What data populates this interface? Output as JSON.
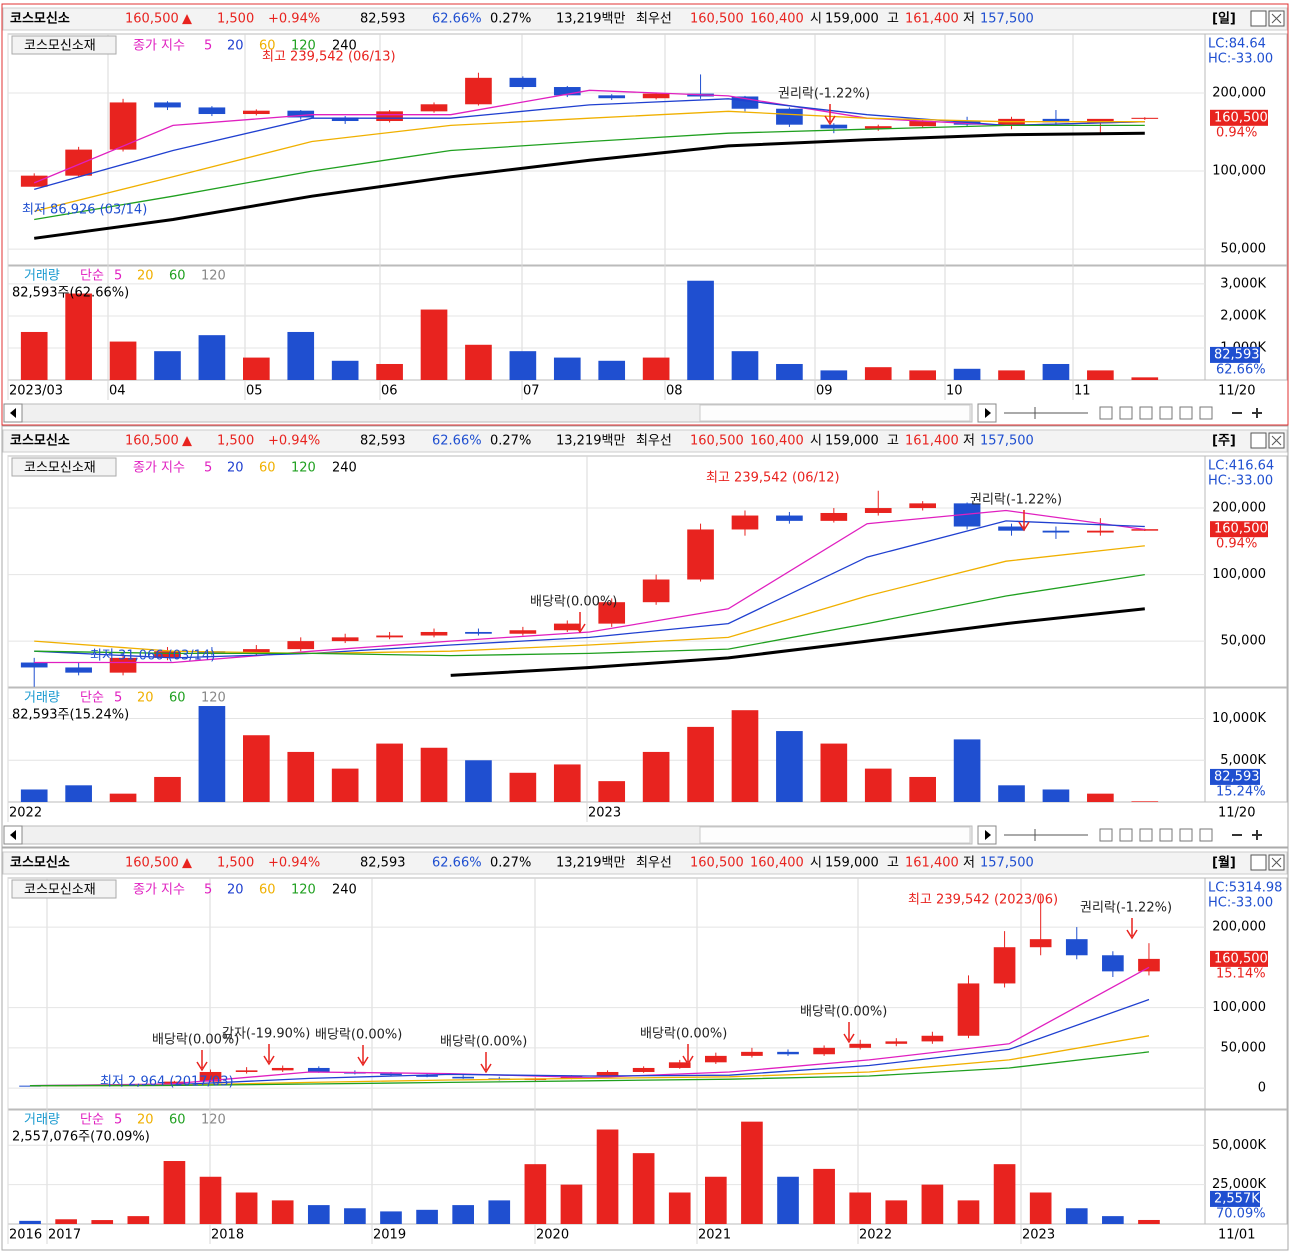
{
  "quote": {
    "name": "코스모신소",
    "price": "160,500",
    "arrow": "▲",
    "change": "1,500",
    "change_pct": "+0.94%",
    "volume": "82,593",
    "volume_ratio": "62.66%",
    "turnover": "0.27%",
    "amount": "13,219백만",
    "best_label": "최우선",
    "best_ask": "160,500",
    "best_bid": "160,400",
    "open_label": "시",
    "open": "159,000",
    "high_label": "고",
    "high": "161,400",
    "low_label": "저",
    "low": "157,500"
  },
  "panels": [
    {
      "period": "[일]",
      "price_chart": {
        "type": "candlestick",
        "legend_name": "코스모신소재",
        "legend_label": "종가 지수",
        "log_scale": true,
        "ylim": [
          43400,
          338000
        ],
        "yticks": [
          {
            "value": 200000,
            "label": "200,000"
          },
          {
            "value": 100000,
            "label": "100,000"
          },
          {
            "value": 50000,
            "label": "50,000"
          }
        ],
        "lc": "LC:84.64",
        "hc": "HC:-33.00",
        "last_price": "160,500",
        "last_change": "0.94%",
        "up_color": "#e8231f",
        "down_color": "#1f4fd0",
        "open": [
          87000,
          96000,
          121000,
          184000,
          176000,
          166000,
          171000,
          161000,
          156000,
          170000,
          181000,
          229000,
          211000,
          196000,
          191000,
          199000,
          194000,
          174000,
          151000,
          146000,
          149000,
          156000,
          151000,
          159000,
          154000,
          159000
        ],
        "close": [
          96000,
          121000,
          184000,
          176000,
          166000,
          171000,
          161000,
          156000,
          170000,
          181000,
          229000,
          211000,
          196000,
          191000,
          199000,
          194000,
          174000,
          151000,
          146000,
          149000,
          156000,
          151000,
          159000,
          154000,
          159000,
          160500
        ],
        "high": [
          98000,
          124000,
          190000,
          186000,
          178000,
          173000,
          172000,
          163000,
          172000,
          184000,
          239542,
          232000,
          213000,
          198000,
          201000,
          236000,
          195000,
          176000,
          153000,
          151000,
          158000,
          162000,
          162000,
          172000,
          158000,
          161400
        ],
        "low": [
          86926,
          95000,
          119000,
          172000,
          163000,
          164000,
          158000,
          152000,
          154000,
          168000,
          179000,
          207000,
          193000,
          188000,
          189000,
          190000,
          170000,
          148000,
          140000,
          143000,
          147000,
          148000,
          145000,
          150000,
          140000,
          157500
        ],
        "moving_averages": [
          {
            "name": "5",
            "color": "#e020c0",
            "values": [
              90000,
              150000,
              165000,
              165000,
              205000,
              195000,
              160000,
              150000,
              155000
            ]
          },
          {
            "name": "20",
            "color": "#2040d0",
            "values": [
              85000,
              120000,
              160000,
              160000,
              180000,
              190000,
              165000,
              150000,
              155000
            ]
          },
          {
            "name": "60",
            "color": "#f0b000",
            "values": [
              70000,
              95000,
              130000,
              150000,
              160000,
              170000,
              160000,
              155000,
              155000
            ]
          },
          {
            "name": "120",
            "color": "#20a020",
            "values": [
              65000,
              80000,
              100000,
              120000,
              130000,
              140000,
              145000,
              150000,
              150000
            ]
          },
          {
            "name": "240",
            "color": "#000000",
            "values": [
              55000,
              65000,
              80000,
              95000,
              110000,
              125000,
              132000,
              138000,
              140000
            ]
          }
        ],
        "annotations": [
          "최고 239,542 (06/13)",
          "최저 86,926 (03/14)",
          "권리락(-1.22%)"
        ]
      },
      "volume_chart": {
        "type": "bar",
        "title": "거래량",
        "method": "단순",
        "legend": [
          {
            "name": "5",
            "color": "#e020c0"
          },
          {
            "name": "20",
            "color": "#f0b000"
          },
          {
            "name": "60",
            "color": "#20a020"
          },
          {
            "name": "120",
            "color": "#888888"
          }
        ],
        "summary": "82,593주(62.66%)",
        "last_value": "82,593",
        "last_ratio": "62.66%",
        "ylim": [
          0,
          3560000
        ],
        "yticks": [
          {
            "value": 3000000,
            "label": "3,000K"
          },
          {
            "value": 2000000,
            "label": "2,000K"
          },
          {
            "value": 1000000,
            "label": "1,000K"
          }
        ],
        "values": [
          1500000,
          2700000,
          1200000,
          900000,
          1400000,
          700000,
          1500000,
          600000,
          500000,
          2200000,
          1100000,
          900000,
          700000,
          600000,
          700000,
          3100000,
          900000,
          500000,
          300000,
          400000,
          300000,
          350000,
          300000,
          500000,
          300000,
          82593
        ]
      },
      "x_axis": {
        "labels": [
          "2023/03",
          "04",
          "05",
          "06",
          "07",
          "08",
          "09",
          "10",
          "11"
        ],
        "end_label": "11/20"
      }
    },
    {
      "period": "[주]",
      "price_chart": {
        "type": "candlestick",
        "legend_name": "코스모신소재",
        "legend_label": "종가 지수",
        "log_scale": true,
        "ylim": [
          31000,
          344000
        ],
        "yticks": [
          {
            "value": 200000,
            "label": "200,000"
          },
          {
            "value": 100000,
            "label": "100,000"
          },
          {
            "value": 50000,
            "label": "50,000"
          }
        ],
        "lc": "LC:416.64",
        "hc": "HC:-33.00",
        "last_price": "160,500",
        "last_change": "0.94%",
        "up_color": "#e8231f",
        "down_color": "#1f4fd0",
        "open": [
          40000,
          38000,
          36000,
          42000,
          45000,
          44000,
          46000,
          50000,
          52000,
          53000,
          55000,
          54000,
          56000,
          60000,
          75000,
          95000,
          160000,
          185000,
          175000,
          190000,
          200000,
          210000,
          165000,
          158000,
          155000,
          158000
        ],
        "close": [
          38000,
          36000,
          42000,
          45000,
          44000,
          46000,
          50000,
          52000,
          53000,
          55000,
          54000,
          56000,
          60000,
          75000,
          95000,
          160000,
          185000,
          175000,
          190000,
          200000,
          210000,
          165000,
          158000,
          155000,
          158000,
          160500
        ],
        "high": [
          42000,
          40000,
          43000,
          47000,
          47000,
          48000,
          52000,
          54000,
          55000,
          57000,
          57000,
          58000,
          62000,
          78000,
          100000,
          170000,
          195000,
          192000,
          200000,
          239542,
          215000,
          212000,
          170000,
          165000,
          180000,
          161400
        ],
        "low": [
          31066,
          35000,
          35000,
          41000,
          43000,
          43000,
          45000,
          49000,
          51000,
          52000,
          53000,
          53000,
          55000,
          58000,
          73000,
          93000,
          150000,
          170000,
          172000,
          185000,
          195000,
          160000,
          150000,
          145000,
          150000,
          157500
        ],
        "moving_averages": [
          {
            "name": "5",
            "color": "#e020c0",
            "values": [
              40000,
              40000,
              45000,
              50000,
              55000,
              70000,
              170000,
              195000,
              160000
            ]
          },
          {
            "name": "20",
            "color": "#2040d0",
            "values": [
              45000,
              42000,
              44000,
              48000,
              52000,
              60000,
              120000,
              175000,
              165000
            ]
          },
          {
            "name": "60",
            "color": "#f0b000",
            "values": [
              50000,
              45000,
              44000,
              45000,
              48000,
              52000,
              80000,
              115000,
              135000
            ]
          },
          {
            "name": "120",
            "color": "#20a020",
            "values": [
              45000,
              44000,
              44000,
              43000,
              44000,
              46000,
              60000,
              80000,
              100000
            ]
          },
          {
            "name": "240",
            "color": "#000000",
            "values": [
              null,
              null,
              null,
              35000,
              38000,
              42000,
              50000,
              60000,
              70000
            ]
          }
        ],
        "annotations": [
          "최고 239,542 (06/12)",
          "최저 31,066 (03/14)",
          "권리락(-1.22%)",
          "배당락(0.00%)"
        ]
      },
      "volume_chart": {
        "type": "bar",
        "title": "거래량",
        "method": "단순",
        "legend": [
          {
            "name": "5",
            "color": "#e020c0"
          },
          {
            "name": "20",
            "color": "#f0b000"
          },
          {
            "name": "60",
            "color": "#20a020"
          },
          {
            "name": "120",
            "color": "#888888"
          }
        ],
        "summary": "82,593주(15.24%)",
        "last_value": "82,593",
        "last_ratio": "15.24%",
        "ylim": [
          0,
          13660000
        ],
        "yticks": [
          {
            "value": 10000000,
            "label": "10,000K"
          },
          {
            "value": 5000000,
            "label": "5,000K"
          }
        ],
        "values": [
          1500000,
          2000000,
          1000000,
          3000000,
          11500000,
          8000000,
          6000000,
          4000000,
          7000000,
          6500000,
          5000000,
          3500000,
          4500000,
          2500000,
          6000000,
          9000000,
          11000000,
          8500000,
          7000000,
          4000000,
          3000000,
          7500000,
          2000000,
          1500000,
          1000000,
          82593
        ]
      },
      "x_axis": {
        "labels": [
          "2022",
          "2023"
        ],
        "end_label": "11/20"
      }
    },
    {
      "period": "[월]",
      "price_chart": {
        "type": "candlestick",
        "legend_name": "코스모신소재",
        "legend_label": "종가 지수",
        "log_scale": false,
        "ylim": [
          -26000,
          261000
        ],
        "yticks": [
          {
            "value": 200000,
            "label": "200,000"
          },
          {
            "value": 100000,
            "label": "100,000"
          },
          {
            "value": 50000,
            "label": "50,000"
          },
          0
        ],
        "lc": "LC:5314.98",
        "hc": "HC:-33.00",
        "last_price": "160,500",
        "last_change": "15.14%",
        "up_color": "#e8231f",
        "down_color": "#1f4fd0",
        "open": [
          3000,
          2964,
          3500,
          4000,
          5000,
          8000,
          20000,
          22000,
          25000,
          20000,
          18000,
          16000,
          14000,
          12000,
          10000,
          12000,
          15000,
          20000,
          25000,
          32000,
          40000,
          45000,
          42000,
          50000,
          55000,
          58000,
          65000,
          130000,
          175000,
          185000,
          165000,
          145000
        ],
        "close": [
          2964,
          3500,
          4000,
          5000,
          8000,
          20000,
          22000,
          25000,
          20000,
          18000,
          16000,
          14000,
          12000,
          10000,
          12000,
          15000,
          20000,
          25000,
          32000,
          40000,
          45000,
          42000,
          50000,
          55000,
          58000,
          65000,
          130000,
          175000,
          185000,
          165000,
          145000,
          160500
        ],
        "high": [
          3300,
          3800,
          4400,
          5500,
          9000,
          23000,
          26000,
          28000,
          27000,
          22000,
          20000,
          18000,
          16000,
          14000,
          13000,
          16000,
          22000,
          27000,
          35000,
          44000,
          50000,
          48000,
          53000,
          60000,
          62000,
          70000,
          140000,
          195000,
          239542,
          200000,
          170000,
          180000
        ],
        "low": [
          2980,
          2964,
          3400,
          3900,
          4800,
          7500,
          18000,
          20000,
          19000,
          17000,
          15500,
          13500,
          11500,
          9500,
          9000,
          11000,
          14500,
          19000,
          24000,
          30000,
          38000,
          40000,
          40000,
          48000,
          52000,
          55000,
          62000,
          125000,
          165000,
          160000,
          138000,
          140000
        ],
        "moving_averages": [
          {
            "name": "5",
            "color": "#e020c0",
            "values": [
              3000,
              5000,
              20000,
              18000,
              13000,
              20000,
              35000,
              55000,
              150000
            ]
          },
          {
            "name": "20",
            "color": "#2040d0",
            "values": [
              3000,
              4000,
              12000,
              17000,
              15000,
              16000,
              28000,
              48000,
              110000
            ]
          },
          {
            "name": "60",
            "color": "#f0b000",
            "values": [
              3000,
              3500,
              7000,
              10000,
              12000,
              14000,
              20000,
              35000,
              65000
            ]
          },
          {
            "name": "120",
            "color": "#20a020",
            "values": [
              3000,
              3200,
              5000,
              7000,
              9000,
              11000,
              15000,
              25000,
              45000
            ]
          },
          {
            "name": "240",
            "color": "#000000",
            "values": []
          }
        ],
        "annotations": [
          "최고 239,542 (2023/06)",
          "최저 2,964 (2017/03)",
          "권리락(-1.22%)",
          "배당락(0.00%)",
          "감자(-19.90%)",
          "배당락(0.00%)",
          "배당락(0.00%)",
          "배당락(0.00%)",
          "배당락(0.00%)"
        ]
      },
      "volume_chart": {
        "type": "bar",
        "title": "거래량",
        "method": "단순",
        "legend": [
          {
            "name": "5",
            "color": "#e020c0"
          },
          {
            "name": "20",
            "color": "#f0b000"
          },
          {
            "name": "60",
            "color": "#20a020"
          },
          {
            "name": "120",
            "color": "#888888"
          }
        ],
        "summary": "2,557,076주(70.09%)",
        "last_value": "2,557K",
        "last_ratio": "70.09%",
        "ylim": [
          0,
          72400000
        ],
        "yticks": [
          {
            "value": 50000000,
            "label": "50,000K"
          },
          {
            "value": 25000000,
            "label": "25,000K"
          }
        ],
        "values": [
          2000000,
          3000000,
          2500000,
          5000000,
          40000000,
          30000000,
          20000000,
          15000000,
          12000000,
          10000000,
          8000000,
          9000000,
          12000000,
          15000000,
          38000000,
          25000000,
          60000000,
          45000000,
          20000000,
          30000000,
          65000000,
          30000000,
          35000000,
          20000000,
          15000000,
          25000000,
          15000000,
          38000000,
          20000000,
          10000000,
          5000000,
          2557076
        ]
      },
      "x_axis": {
        "labels": [
          "2016",
          "2017",
          "2018",
          "2019",
          "2020",
          "2021",
          "2022",
          "2023"
        ],
        "end_label": "11/01"
      }
    }
  ]
}
